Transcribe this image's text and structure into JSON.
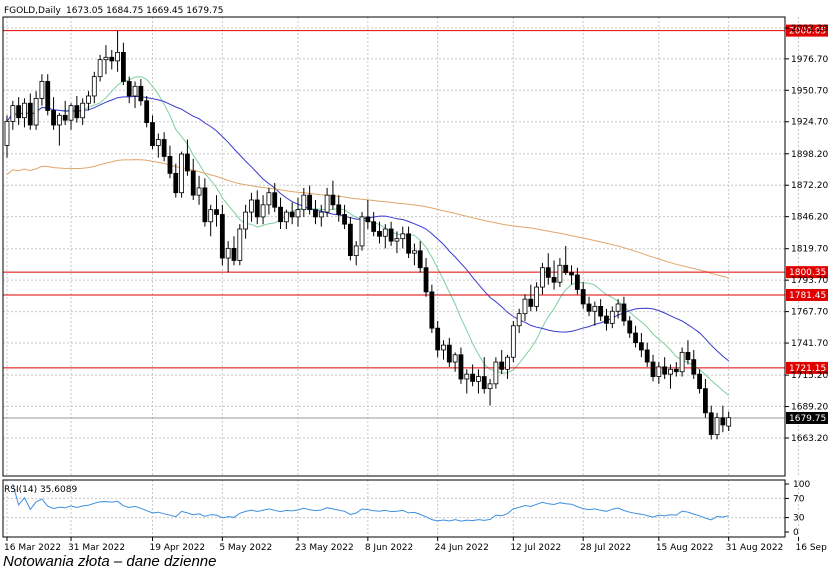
{
  "header": {
    "symbol": "FGOLD,Daily",
    "ohlc": "1673.05 1684.75 1669.45 1679.75"
  },
  "caption": "Notowania złota – dane dzienne",
  "colors": {
    "bull": "#ffffff",
    "bear": "#000000",
    "outline": "#000000",
    "ma_fast": "#7fcf9f",
    "ma_mid": "#3a3ad0",
    "ma_slow": "#e0a66a",
    "level_line": "#e00000",
    "level_label_bg": "#e00000",
    "current_label_bg": "#000000",
    "grid": "#c8c8c8",
    "rsi_line": "#3f8fe0"
  },
  "chart_data": {
    "type": "candlestick",
    "title": "FGOLD,Daily",
    "y_ticks": [
      "2002.20",
      "1976.70",
      "1950.70",
      "1924.70",
      "1898.20",
      "1872.20",
      "1846.20",
      "1819.70",
      "1793.70",
      "1767.70",
      "1741.70",
      "1715.20",
      "1689.20",
      "1663.20"
    ],
    "ylim": [
      1650,
      2010
    ],
    "x_ticks": [
      "16 Mar 2022",
      "31 Mar 2022",
      "19 Apr 2022",
      "5 May 2022",
      "23 May 2022",
      "8 Jun 2022",
      "24 Jun 2022",
      "12 Jul 2022",
      "28 Jul 2022",
      "15 Aug 2022",
      "31 Aug 2022",
      "16 Sep 2022"
    ],
    "x_tick_index": [
      0,
      11,
      25,
      37,
      50,
      62,
      74,
      87,
      99,
      112,
      124,
      136
    ],
    "candles": [
      [
        1905,
        1930,
        1895,
        1925
      ],
      [
        1925,
        1942,
        1918,
        1938
      ],
      [
        1938,
        1945,
        1922,
        1928
      ],
      [
        1928,
        1944,
        1920,
        1940
      ],
      [
        1940,
        1948,
        1918,
        1922
      ],
      [
        1922,
        1950,
        1918,
        1944
      ],
      [
        1944,
        1964,
        1938,
        1958
      ],
      [
        1958,
        1964,
        1930,
        1934
      ],
      [
        1934,
        1945,
        1918,
        1922
      ],
      [
        1922,
        1932,
        1905,
        1930
      ],
      [
        1930,
        1942,
        1922,
        1926
      ],
      [
        1926,
        1940,
        1918,
        1938
      ],
      [
        1938,
        1946,
        1924,
        1928
      ],
      [
        1928,
        1944,
        1922,
        1940
      ],
      [
        1940,
        1950,
        1934,
        1946
      ],
      [
        1946,
        1966,
        1940,
        1962
      ],
      [
        1962,
        1980,
        1958,
        1976
      ],
      [
        1976,
        1988,
        1964,
        1978
      ],
      [
        1978,
        1984,
        1968,
        1975
      ],
      [
        1975,
        2000,
        1966,
        1982
      ],
      [
        1982,
        1990,
        1955,
        1958
      ],
      [
        1958,
        1962,
        1940,
        1946
      ],
      [
        1946,
        1958,
        1936,
        1954
      ],
      [
        1954,
        1960,
        1938,
        1942
      ],
      [
        1942,
        1946,
        1920,
        1924
      ],
      [
        1924,
        1930,
        1902,
        1905
      ],
      [
        1905,
        1915,
        1895,
        1910
      ],
      [
        1910,
        1916,
        1892,
        1896
      ],
      [
        1896,
        1905,
        1878,
        1882
      ],
      [
        1882,
        1890,
        1862,
        1866
      ],
      [
        1866,
        1900,
        1862,
        1898
      ],
      [
        1898,
        1910,
        1880,
        1884
      ],
      [
        1884,
        1894,
        1860,
        1864
      ],
      [
        1864,
        1880,
        1856,
        1870
      ],
      [
        1870,
        1878,
        1838,
        1842
      ],
      [
        1842,
        1856,
        1830,
        1852
      ],
      [
        1852,
        1864,
        1838,
        1848
      ],
      [
        1848,
        1856,
        1806,
        1812
      ],
      [
        1812,
        1826,
        1800,
        1820
      ],
      [
        1820,
        1830,
        1806,
        1810
      ],
      [
        1810,
        1840,
        1806,
        1836
      ],
      [
        1836,
        1856,
        1828,
        1850
      ],
      [
        1850,
        1866,
        1842,
        1860
      ],
      [
        1860,
        1868,
        1840,
        1846
      ],
      [
        1846,
        1864,
        1840,
        1856
      ],
      [
        1856,
        1870,
        1848,
        1866
      ],
      [
        1866,
        1874,
        1850,
        1854
      ],
      [
        1854,
        1862,
        1836,
        1842
      ],
      [
        1842,
        1852,
        1836,
        1850
      ],
      [
        1850,
        1858,
        1840,
        1846
      ],
      [
        1846,
        1862,
        1838,
        1852
      ],
      [
        1852,
        1870,
        1846,
        1864
      ],
      [
        1864,
        1872,
        1848,
        1852
      ],
      [
        1852,
        1860,
        1840,
        1846
      ],
      [
        1846,
        1856,
        1838,
        1850
      ],
      [
        1850,
        1870,
        1846,
        1864
      ],
      [
        1864,
        1876,
        1852,
        1856
      ],
      [
        1856,
        1864,
        1842,
        1848
      ],
      [
        1848,
        1856,
        1836,
        1840
      ],
      [
        1840,
        1846,
        1810,
        1814
      ],
      [
        1814,
        1826,
        1806,
        1822
      ],
      [
        1822,
        1850,
        1818,
        1846
      ],
      [
        1846,
        1860,
        1836,
        1842
      ],
      [
        1842,
        1850,
        1830,
        1834
      ],
      [
        1834,
        1842,
        1824,
        1830
      ],
      [
        1830,
        1840,
        1820,
        1836
      ],
      [
        1836,
        1842,
        1822,
        1826
      ],
      [
        1826,
        1834,
        1816,
        1828
      ],
      [
        1828,
        1838,
        1820,
        1832
      ],
      [
        1832,
        1838,
        1812,
        1816
      ],
      [
        1816,
        1824,
        1806,
        1818
      ],
      [
        1818,
        1826,
        1800,
        1804
      ],
      [
        1804,
        1812,
        1780,
        1784
      ],
      [
        1784,
        1790,
        1750,
        1754
      ],
      [
        1754,
        1760,
        1730,
        1736
      ],
      [
        1736,
        1744,
        1728,
        1740
      ],
      [
        1740,
        1746,
        1722,
        1726
      ],
      [
        1726,
        1734,
        1718,
        1732
      ],
      [
        1732,
        1738,
        1708,
        1712
      ],
      [
        1712,
        1720,
        1700,
        1716
      ],
      [
        1716,
        1724,
        1706,
        1710
      ],
      [
        1710,
        1720,
        1700,
        1714
      ],
      [
        1714,
        1730,
        1700,
        1704
      ],
      [
        1704,
        1712,
        1690,
        1708
      ],
      [
        1708,
        1730,
        1704,
        1726
      ],
      [
        1726,
        1736,
        1716,
        1720
      ],
      [
        1720,
        1732,
        1712,
        1730
      ],
      [
        1730,
        1760,
        1726,
        1756
      ],
      [
        1756,
        1770,
        1750,
        1766
      ],
      [
        1766,
        1782,
        1760,
        1778
      ],
      [
        1778,
        1790,
        1768,
        1772
      ],
      [
        1772,
        1792,
        1768,
        1788
      ],
      [
        1788,
        1808,
        1782,
        1804
      ],
      [
        1804,
        1816,
        1790,
        1796
      ],
      [
        1796,
        1810,
        1786,
        1792
      ],
      [
        1792,
        1812,
        1788,
        1806
      ],
      [
        1806,
        1822,
        1798,
        1800
      ],
      [
        1800,
        1806,
        1790,
        1798
      ],
      [
        1798,
        1804,
        1782,
        1786
      ],
      [
        1786,
        1792,
        1770,
        1774
      ],
      [
        1774,
        1780,
        1764,
        1768
      ],
      [
        1768,
        1776,
        1756,
        1772
      ],
      [
        1772,
        1778,
        1760,
        1764
      ],
      [
        1764,
        1770,
        1752,
        1758
      ],
      [
        1758,
        1772,
        1754,
        1768
      ],
      [
        1768,
        1778,
        1762,
        1774
      ],
      [
        1774,
        1780,
        1756,
        1760
      ],
      [
        1760,
        1764,
        1746,
        1750
      ],
      [
        1750,
        1756,
        1738,
        1742
      ],
      [
        1742,
        1750,
        1730,
        1736
      ],
      [
        1736,
        1742,
        1722,
        1726
      ],
      [
        1726,
        1732,
        1710,
        1714
      ],
      [
        1714,
        1726,
        1708,
        1722
      ],
      [
        1722,
        1730,
        1712,
        1716
      ],
      [
        1716,
        1724,
        1704,
        1720
      ],
      [
        1720,
        1726,
        1714,
        1718
      ],
      [
        1718,
        1738,
        1714,
        1734
      ],
      [
        1734,
        1744,
        1724,
        1728
      ],
      [
        1728,
        1736,
        1712,
        1716
      ],
      [
        1716,
        1720,
        1700,
        1704
      ],
      [
        1704,
        1712,
        1680,
        1684
      ],
      [
        1684,
        1690,
        1662,
        1666
      ],
      [
        1666,
        1684,
        1662,
        1680
      ],
      [
        1680,
        1690,
        1668,
        1674
      ],
      [
        1673,
        1685,
        1669,
        1680
      ]
    ],
    "horizontal_levels": [
      2000.05,
      1800.35,
      1781.45,
      1721.15
    ],
    "current_price": 1679.75,
    "rsi": {
      "label": "RSI(14) 35.6089",
      "period": 14,
      "value": 35.6089,
      "y_ticks": [
        "100",
        "70",
        "30",
        "0"
      ],
      "ylim": [
        0,
        100
      ]
    }
  }
}
